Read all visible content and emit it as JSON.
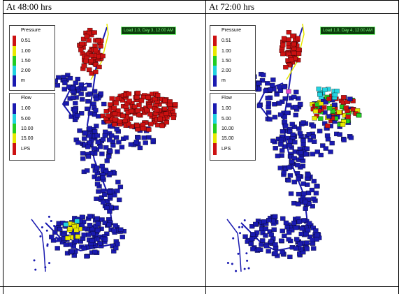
{
  "panels": [
    {
      "title": "At 48:00 hrs",
      "load_label": "Load 1.0, Day 3, 12:00 AM",
      "pressure_legend": {
        "title": "Pressure",
        "labels": [
          "0.51",
          "1.00",
          "1.50",
          "2.00",
          "m"
        ]
      },
      "flow_legend": {
        "title": "Flow",
        "labels": [
          "1.00",
          "5.00",
          "10.00",
          "15.00",
          "LPS"
        ]
      }
    },
    {
      "title": "At 72:00 hrs",
      "load_label": "Load 1.0, Day 4, 12:00 AM",
      "pressure_legend": {
        "title": "Pressure",
        "labels": [
          "0.51",
          "1.00",
          "1.50",
          "2.00",
          "m"
        ]
      },
      "flow_legend": {
        "title": "Flow",
        "labels": [
          "1.00",
          "5.00",
          "10.00",
          "15.00",
          "LPS"
        ]
      }
    }
  ],
  "colors": {
    "red": "#cc1111",
    "yellow": "#e8e800",
    "green": "#22cc22",
    "cyan": "#22d3e0",
    "blue": "#1a1ab0",
    "pink": "#e04ad0"
  }
}
